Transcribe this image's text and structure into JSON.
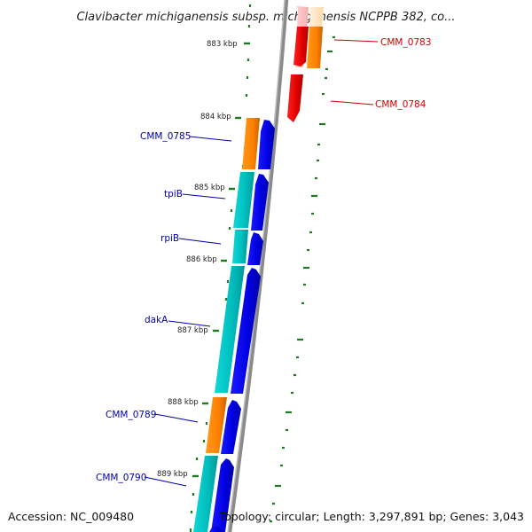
{
  "title": "Clavibacter michiganensis subsp. michiganensis NCPPB 382, co...",
  "footer": {
    "accession": "Accession: NC_009480",
    "stats": "Topology: circular; Length: 3,297,891 bp; Genes: 3,043"
  },
  "ruler_labels": [
    "883 kbp",
    "884 kbp",
    "885 kbp",
    "886 kbp",
    "887 kbp",
    "888 kbp",
    "889 kbp"
  ],
  "gene_labels": [
    {
      "text": "CMM_0783",
      "color": "#cc0000"
    },
    {
      "text": "CMM_0784",
      "color": "#cc0000"
    },
    {
      "text": "CMM_0785",
      "color": "#0000aa"
    },
    {
      "text": "tpiB",
      "color": "#0000aa"
    },
    {
      "text": "rpiB",
      "color": "#0000aa"
    },
    {
      "text": "dakA",
      "color": "#0000aa"
    },
    {
      "text": "CMM_0789",
      "color": "#0000aa"
    },
    {
      "text": "CMM_0790",
      "color": "#0000aa"
    }
  ],
  "colors": {
    "backbone": "#8a8a8a",
    "tick": "#1e7a1e",
    "cds": "#ff8c00",
    "gene": "#00c8c8",
    "forward_feature": "#0000e6",
    "reverse_feature": "#e60000",
    "reverse_cds": "#ffe0b0"
  }
}
